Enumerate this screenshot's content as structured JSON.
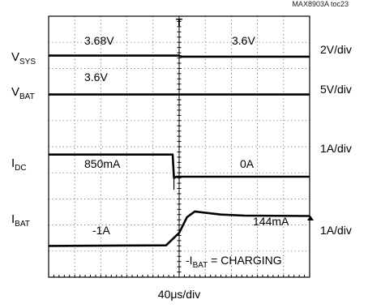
{
  "figure_ref": "MAX8903A toc23",
  "chart_data": {
    "type": "line",
    "title": "",
    "xlabel": "40μs/div",
    "grid": true,
    "x_unit": "div",
    "xlim": [
      0,
      10
    ],
    "trigger_marker": "T",
    "series": [
      {
        "name": "VSYS",
        "name_main": "V",
        "name_sub": "SYS",
        "scale": "2V/div",
        "annotations": [
          "3.68V",
          "3.6V"
        ],
        "points": [
          [
            0,
            3.68
          ],
          [
            5.0,
            3.68
          ],
          [
            5.1,
            3.6
          ],
          [
            10,
            3.6
          ]
        ]
      },
      {
        "name": "VBAT",
        "name_main": "V",
        "name_sub": "BAT",
        "scale": "5V/div",
        "annotations": [
          "3.6V"
        ],
        "points": [
          [
            0,
            3.6
          ],
          [
            10,
            3.6
          ]
        ]
      },
      {
        "name": "IDC",
        "name_main": "I",
        "name_sub": "DC",
        "scale": "1A/div",
        "annotations": [
          "850mA",
          "0A"
        ],
        "points": [
          [
            0,
            0.85
          ],
          [
            4.75,
            0.85
          ],
          [
            4.8,
            -0.05
          ],
          [
            4.9,
            0.0
          ],
          [
            10,
            0.0
          ]
        ]
      },
      {
        "name": "IBAT",
        "name_main": "I",
        "name_sub": "BAT",
        "scale": "1A/div",
        "annotations": [
          "-1A",
          "144mA"
        ],
        "points": [
          [
            0,
            -1.0
          ],
          [
            4.5,
            -0.98
          ],
          [
            5.0,
            -0.5
          ],
          [
            5.3,
            0.1
          ],
          [
            5.6,
            0.32
          ],
          [
            6.6,
            0.2
          ],
          [
            7.5,
            0.16
          ],
          [
            10,
            0.144
          ]
        ]
      }
    ],
    "annotation_note": {
      "prefix": "-I",
      "sub": "BAT",
      "suffix": " = CHARGING"
    }
  }
}
